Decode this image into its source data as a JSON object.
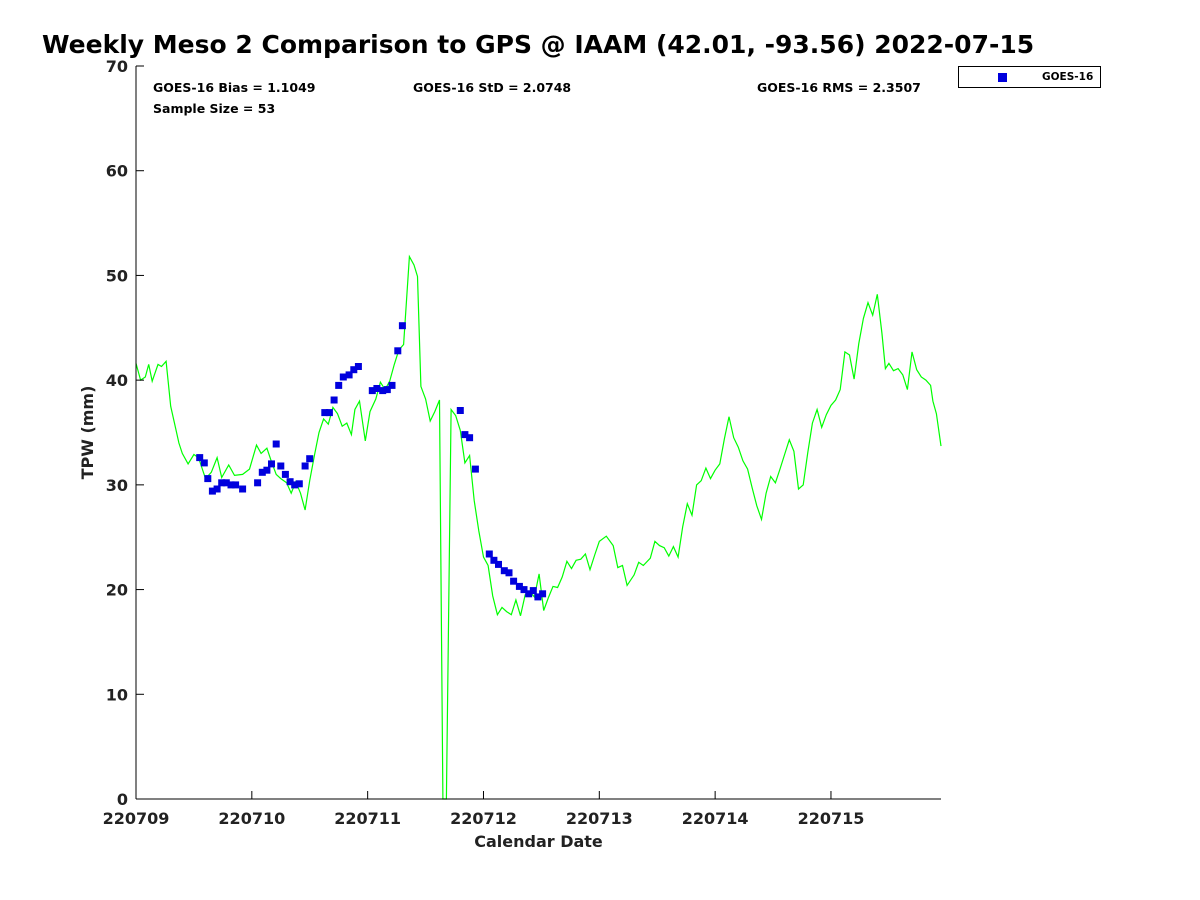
{
  "chart_data": {
    "type": "line",
    "title": "Weekly Meso 2 Comparison to GPS @ IAAM (42.01, -93.56) 2022-07-15",
    "xlabel": "Calendar Date",
    "ylabel": "TPW (mm)",
    "xlim_days": [
      0,
      6.95
    ],
    "ylim": [
      0,
      70
    ],
    "yticks": [
      0,
      10,
      20,
      30,
      40,
      50,
      60,
      70
    ],
    "xtick_labels": [
      "220709",
      "220710",
      "220711",
      "220712",
      "220713",
      "220714",
      "220715"
    ],
    "grid": false,
    "legend_position": "top-right",
    "stats": {
      "bias": "GOES-16 Bias = 1.1049",
      "std": "GOES-16 StD = 2.0748",
      "rms": "GOES-16 RMS = 2.3507",
      "sample_size": "Sample Size = 53"
    },
    "series": [
      {
        "color": "#00ff00",
        "kind": "line",
        "points": [
          [
            0.0,
            41.6
          ],
          [
            0.04,
            40.0
          ],
          [
            0.08,
            40.3
          ],
          [
            0.11,
            41.5
          ],
          [
            0.14,
            39.9
          ],
          [
            0.19,
            41.5
          ],
          [
            0.22,
            41.3
          ],
          [
            0.26,
            41.8
          ],
          [
            0.3,
            37.5
          ],
          [
            0.34,
            35.5
          ],
          [
            0.37,
            34.0
          ],
          [
            0.4,
            33.0
          ],
          [
            0.45,
            32.0
          ],
          [
            0.5,
            32.9
          ],
          [
            0.54,
            32.6
          ],
          [
            0.6,
            30.6
          ],
          [
            0.65,
            31.2
          ],
          [
            0.7,
            32.6
          ],
          [
            0.74,
            30.7
          ],
          [
            0.8,
            31.9
          ],
          [
            0.85,
            30.9
          ],
          [
            0.92,
            31.0
          ],
          [
            0.98,
            31.5
          ],
          [
            1.04,
            33.8
          ],
          [
            1.08,
            33.0
          ],
          [
            1.13,
            33.5
          ],
          [
            1.17,
            32.2
          ],
          [
            1.21,
            31.0
          ],
          [
            1.25,
            30.6
          ],
          [
            1.3,
            30.2
          ],
          [
            1.34,
            29.2
          ],
          [
            1.38,
            30.3
          ],
          [
            1.42,
            29.2
          ],
          [
            1.46,
            27.6
          ],
          [
            1.5,
            30.4
          ],
          [
            1.54,
            32.8
          ],
          [
            1.58,
            35.0
          ],
          [
            1.62,
            36.3
          ],
          [
            1.66,
            35.8
          ],
          [
            1.7,
            37.4
          ],
          [
            1.74,
            36.8
          ],
          [
            1.78,
            35.6
          ],
          [
            1.82,
            35.9
          ],
          [
            1.86,
            34.8
          ],
          [
            1.89,
            37.2
          ],
          [
            1.93,
            38.0
          ],
          [
            1.98,
            34.2
          ],
          [
            2.02,
            37.0
          ],
          [
            2.07,
            38.2
          ],
          [
            2.11,
            39.8
          ],
          [
            2.15,
            39.1
          ],
          [
            2.19,
            39.9
          ],
          [
            2.23,
            41.5
          ],
          [
            2.27,
            42.9
          ],
          [
            2.31,
            43.4
          ],
          [
            2.36,
            51.8
          ],
          [
            2.4,
            51.0
          ],
          [
            2.43,
            49.9
          ],
          [
            2.46,
            39.4
          ],
          [
            2.5,
            38.2
          ],
          [
            2.54,
            36.1
          ],
          [
            2.58,
            37.0
          ],
          [
            2.62,
            38.1
          ],
          [
            2.65,
            0.0
          ],
          [
            2.68,
            0.0
          ],
          [
            2.72,
            37.2
          ],
          [
            2.76,
            36.6
          ],
          [
            2.8,
            35.2
          ],
          [
            2.84,
            32.1
          ],
          [
            2.88,
            32.8
          ],
          [
            2.92,
            28.5
          ],
          [
            2.96,
            25.6
          ],
          [
            3.0,
            23.1
          ],
          [
            3.04,
            22.3
          ],
          [
            3.08,
            19.4
          ],
          [
            3.12,
            17.6
          ],
          [
            3.16,
            18.3
          ],
          [
            3.2,
            17.9
          ],
          [
            3.24,
            17.6
          ],
          [
            3.28,
            19.0
          ],
          [
            3.32,
            17.5
          ],
          [
            3.36,
            19.5
          ],
          [
            3.4,
            19.8
          ],
          [
            3.44,
            19.3
          ],
          [
            3.48,
            21.5
          ],
          [
            3.52,
            18.0
          ],
          [
            3.56,
            19.2
          ],
          [
            3.6,
            20.3
          ],
          [
            3.64,
            20.2
          ],
          [
            3.68,
            21.2
          ],
          [
            3.72,
            22.7
          ],
          [
            3.76,
            22.0
          ],
          [
            3.8,
            22.8
          ],
          [
            3.84,
            22.9
          ],
          [
            3.88,
            23.4
          ],
          [
            3.92,
            21.9
          ],
          [
            3.96,
            23.3
          ],
          [
            4.0,
            24.6
          ],
          [
            4.06,
            25.1
          ],
          [
            4.12,
            24.2
          ],
          [
            4.16,
            22.1
          ],
          [
            4.2,
            22.3
          ],
          [
            4.24,
            20.4
          ],
          [
            4.3,
            21.4
          ],
          [
            4.34,
            22.6
          ],
          [
            4.38,
            22.3
          ],
          [
            4.44,
            23.0
          ],
          [
            4.48,
            24.6
          ],
          [
            4.52,
            24.2
          ],
          [
            4.56,
            24.0
          ],
          [
            4.6,
            23.2
          ],
          [
            4.64,
            24.1
          ],
          [
            4.68,
            23.1
          ],
          [
            4.72,
            26.0
          ],
          [
            4.76,
            28.2
          ],
          [
            4.8,
            27.1
          ],
          [
            4.84,
            30.0
          ],
          [
            4.88,
            30.4
          ],
          [
            4.92,
            31.6
          ],
          [
            4.96,
            30.6
          ],
          [
            5.0,
            31.4
          ],
          [
            5.04,
            32.0
          ],
          [
            5.08,
            34.4
          ],
          [
            5.12,
            36.5
          ],
          [
            5.16,
            34.5
          ],
          [
            5.2,
            33.6
          ],
          [
            5.24,
            32.3
          ],
          [
            5.28,
            31.5
          ],
          [
            5.32,
            29.7
          ],
          [
            5.36,
            28.0
          ],
          [
            5.4,
            26.7
          ],
          [
            5.44,
            29.2
          ],
          [
            5.48,
            30.8
          ],
          [
            5.52,
            30.2
          ],
          [
            5.56,
            31.5
          ],
          [
            5.6,
            32.9
          ],
          [
            5.64,
            34.3
          ],
          [
            5.68,
            33.2
          ],
          [
            5.72,
            29.6
          ],
          [
            5.76,
            30.0
          ],
          [
            5.8,
            33.1
          ],
          [
            5.84,
            35.9
          ],
          [
            5.88,
            37.2
          ],
          [
            5.92,
            35.5
          ],
          [
            5.96,
            36.7
          ],
          [
            6.0,
            37.6
          ],
          [
            6.04,
            38.1
          ],
          [
            6.08,
            39.1
          ],
          [
            6.12,
            42.7
          ],
          [
            6.16,
            42.4
          ],
          [
            6.2,
            40.1
          ],
          [
            6.24,
            43.5
          ],
          [
            6.28,
            45.9
          ],
          [
            6.32,
            47.4
          ],
          [
            6.36,
            46.2
          ],
          [
            6.4,
            48.2
          ],
          [
            6.44,
            44.5
          ],
          [
            6.47,
            41.1
          ],
          [
            6.5,
            41.6
          ],
          [
            6.54,
            40.9
          ],
          [
            6.58,
            41.1
          ],
          [
            6.62,
            40.5
          ],
          [
            6.66,
            39.1
          ],
          [
            6.7,
            42.7
          ],
          [
            6.74,
            41.0
          ],
          [
            6.78,
            40.3
          ],
          [
            6.82,
            40.0
          ],
          [
            6.86,
            39.5
          ],
          [
            6.88,
            38.0
          ],
          [
            6.91,
            36.8
          ],
          [
            6.95,
            33.7
          ]
        ]
      },
      {
        "name": "GOES-16",
        "color": "#0000dd",
        "kind": "scatter",
        "points": [
          [
            0.55,
            32.6
          ],
          [
            0.59,
            32.1
          ],
          [
            0.62,
            30.6
          ],
          [
            0.66,
            29.4
          ],
          [
            0.7,
            29.6
          ],
          [
            0.74,
            30.2
          ],
          [
            0.78,
            30.2
          ],
          [
            0.82,
            30.0
          ],
          [
            0.86,
            30.0
          ],
          [
            0.92,
            29.6
          ],
          [
            1.05,
            30.2
          ],
          [
            1.09,
            31.2
          ],
          [
            1.13,
            31.4
          ],
          [
            1.17,
            32.0
          ],
          [
            1.21,
            33.9
          ],
          [
            1.25,
            31.8
          ],
          [
            1.29,
            31.0
          ],
          [
            1.33,
            30.3
          ],
          [
            1.37,
            30.0
          ],
          [
            1.41,
            30.1
          ],
          [
            1.46,
            31.8
          ],
          [
            1.5,
            32.5
          ],
          [
            1.63,
            36.9
          ],
          [
            1.67,
            36.9
          ],
          [
            1.71,
            38.1
          ],
          [
            1.75,
            39.5
          ],
          [
            1.79,
            40.3
          ],
          [
            1.84,
            40.5
          ],
          [
            1.88,
            41.0
          ],
          [
            1.92,
            41.3
          ],
          [
            2.04,
            39.0
          ],
          [
            2.08,
            39.2
          ],
          [
            2.13,
            39.0
          ],
          [
            2.17,
            39.1
          ],
          [
            2.21,
            39.5
          ],
          [
            2.26,
            42.8
          ],
          [
            2.3,
            45.2
          ],
          [
            2.8,
            37.1
          ],
          [
            2.84,
            34.8
          ],
          [
            2.88,
            34.5
          ],
          [
            2.93,
            31.5
          ],
          [
            3.05,
            23.4
          ],
          [
            3.09,
            22.8
          ],
          [
            3.13,
            22.4
          ],
          [
            3.18,
            21.8
          ],
          [
            3.22,
            21.6
          ],
          [
            3.26,
            20.8
          ],
          [
            3.31,
            20.3
          ],
          [
            3.35,
            20.0
          ],
          [
            3.39,
            19.6
          ],
          [
            3.43,
            19.9
          ],
          [
            3.47,
            19.3
          ],
          [
            3.51,
            19.6
          ]
        ]
      }
    ]
  }
}
